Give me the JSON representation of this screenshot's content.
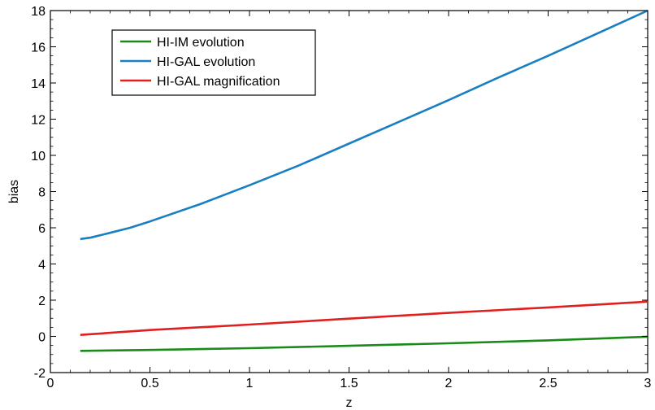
{
  "chart_data": {
    "type": "line",
    "title": "",
    "xlabel": "z",
    "ylabel": "bias",
    "xlim": [
      0,
      3
    ],
    "ylim": [
      -2,
      18
    ],
    "xticks": [
      0,
      0.5,
      1,
      1.5,
      2,
      2.5,
      3
    ],
    "xtick_labels": [
      "0",
      "0.5",
      "1",
      "1.5",
      "2",
      "2.5",
      "3"
    ],
    "yticks": [
      -2,
      0,
      2,
      4,
      6,
      8,
      10,
      12,
      14,
      16,
      18
    ],
    "ytick_labels": [
      "-2",
      "0",
      "2",
      "4",
      "6",
      "8",
      "10",
      "12",
      "14",
      "16",
      "18"
    ],
    "grid": false,
    "legend_position": "top-left",
    "series": [
      {
        "name": "HI-IM evolution",
        "color": "#1a8a1a",
        "x": [
          0.15,
          0.5,
          1.0,
          1.5,
          2.0,
          2.5,
          3.0
        ],
        "y": [
          -0.8,
          -0.75,
          -0.65,
          -0.52,
          -0.38,
          -0.22,
          -0.02
        ]
      },
      {
        "name": "HI-GAL evolution",
        "color": "#1a7fc1",
        "x": [
          0.15,
          0.2,
          0.3,
          0.4,
          0.5,
          0.75,
          1.0,
          1.25,
          1.5,
          1.75,
          2.0,
          2.25,
          2.5,
          2.75,
          3.0
        ],
        "y": [
          5.38,
          5.45,
          5.72,
          6.0,
          6.35,
          7.3,
          8.35,
          9.45,
          10.65,
          11.85,
          13.05,
          14.3,
          15.5,
          16.75,
          18.0
        ]
      },
      {
        "name": "HI-GAL magnification",
        "color": "#e02020",
        "x": [
          0.15,
          0.5,
          1.0,
          1.5,
          2.0,
          2.5,
          3.0
        ],
        "y": [
          0.08,
          0.35,
          0.65,
          0.98,
          1.3,
          1.6,
          1.92
        ]
      }
    ]
  }
}
